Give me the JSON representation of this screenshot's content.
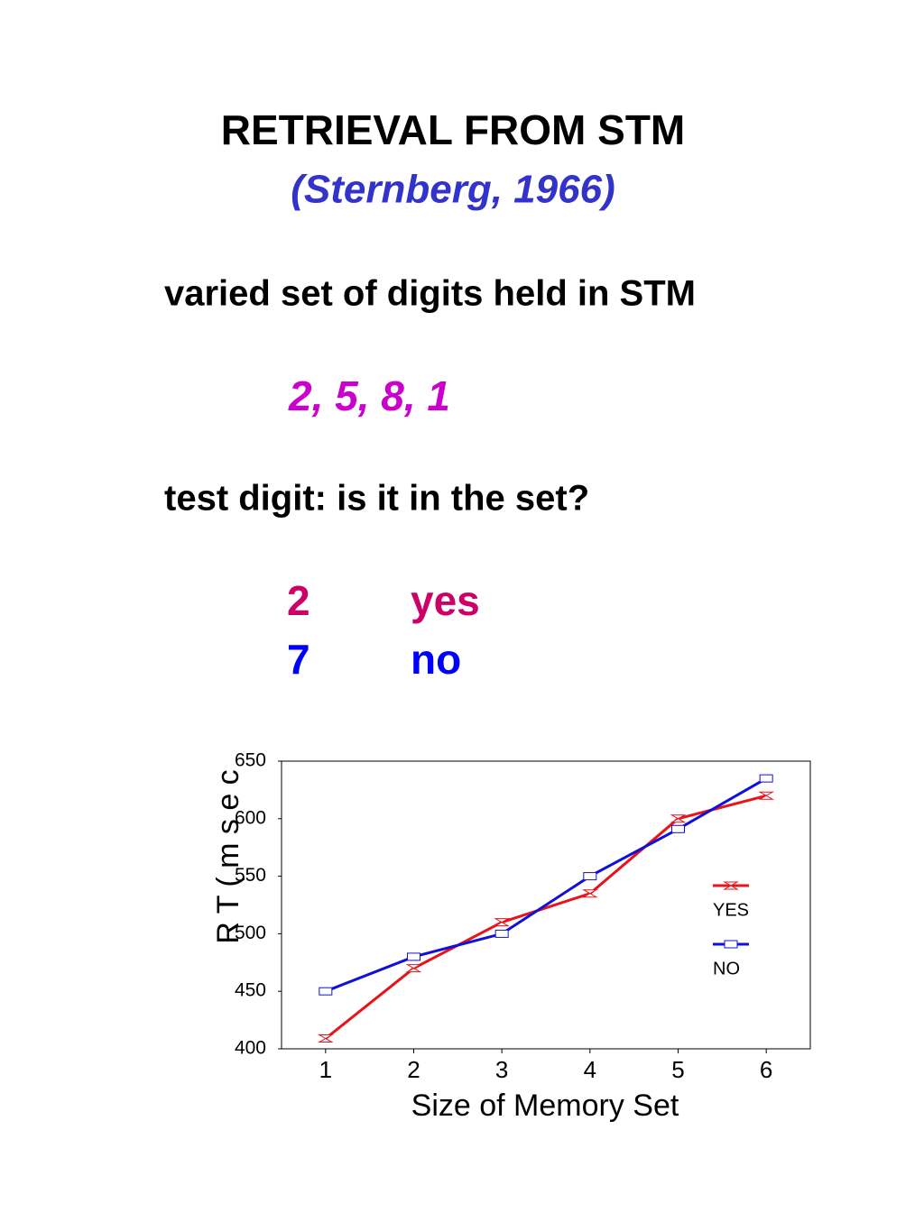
{
  "slide": {
    "title": "RETRIEVAL FROM STM",
    "subtitle": "(Sternberg, 1966)",
    "line1": "varied set of digits held in STM",
    "example": "2, 5, 8, 1",
    "line2": "test digit: is it in the set?",
    "rows": [
      [
        "2",
        "yes"
      ],
      [
        "7",
        "no"
      ]
    ]
  },
  "chart_data": {
    "type": "line",
    "x": [
      1,
      2,
      3,
      4,
      5,
      6
    ],
    "series": [
      {
        "name": "YES",
        "color": "#e8141c",
        "marker": "hourglass",
        "values": [
          409,
          470,
          510,
          535,
          600,
          620
        ]
      },
      {
        "name": "NO",
        "color": "#1010d8",
        "marker": "square",
        "values": [
          450,
          480,
          500,
          550,
          591,
          635
        ]
      }
    ],
    "xlabel": "Size of Memory Set",
    "ylabel": "R T  ( m s e c",
    "xlim": [
      0.5,
      6.5
    ],
    "xticks": [
      1,
      2,
      3,
      4,
      5,
      6
    ],
    "ylim": [
      400,
      650
    ],
    "yticks": [
      400,
      450,
      500,
      550,
      600,
      650
    ],
    "legend": "right"
  }
}
